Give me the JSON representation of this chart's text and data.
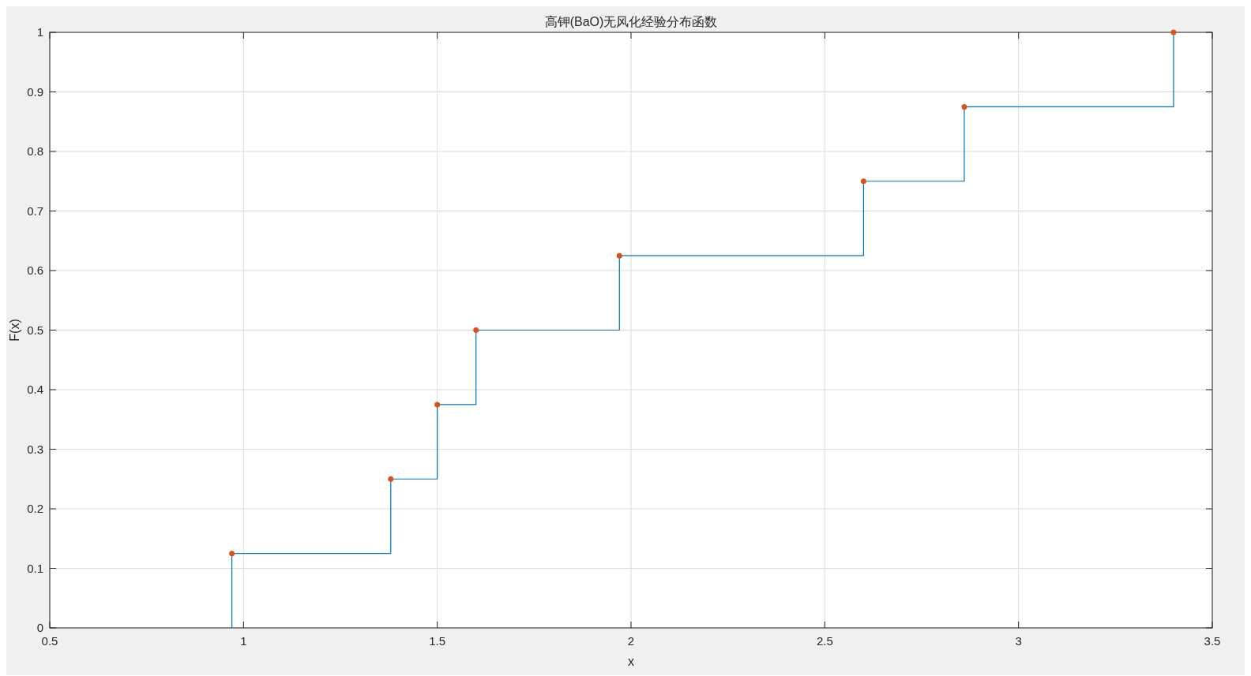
{
  "chart_data": {
    "type": "step",
    "title": "高钾(BaO)无风化经验分布函数",
    "xlabel": "x",
    "ylabel": "F(x)",
    "series": [
      {
        "color": "#0072bd",
        "marker": "none",
        "x": [
          0.97,
          0.97,
          1.38,
          1.5,
          1.6,
          1.97,
          2.6,
          2.86,
          3.4
        ],
        "values": [
          0,
          0.125,
          0.25,
          0.375,
          0.5,
          0.625,
          0.75,
          0.875,
          1
        ]
      },
      {
        "type": "scatter",
        "marker": "circle",
        "color": "#d95319",
        "x": [
          0.97,
          1.38,
          1.5,
          1.6,
          1.97,
          2.6,
          2.86,
          3.4
        ],
        "values": [
          0.125,
          0.25,
          0.375,
          0.5,
          0.625,
          0.75,
          0.875,
          1
        ]
      }
    ],
    "xlim": [
      0.5,
      3.5
    ],
    "xticks": [
      0.5,
      1,
      1.5,
      2,
      2.5,
      3,
      3.5
    ],
    "ylim": [
      0,
      1
    ],
    "yticks": [
      0,
      0.1,
      0.2,
      0.3,
      0.4,
      0.5,
      0.6,
      0.7,
      0.8,
      0.9,
      1
    ],
    "grid": true
  }
}
